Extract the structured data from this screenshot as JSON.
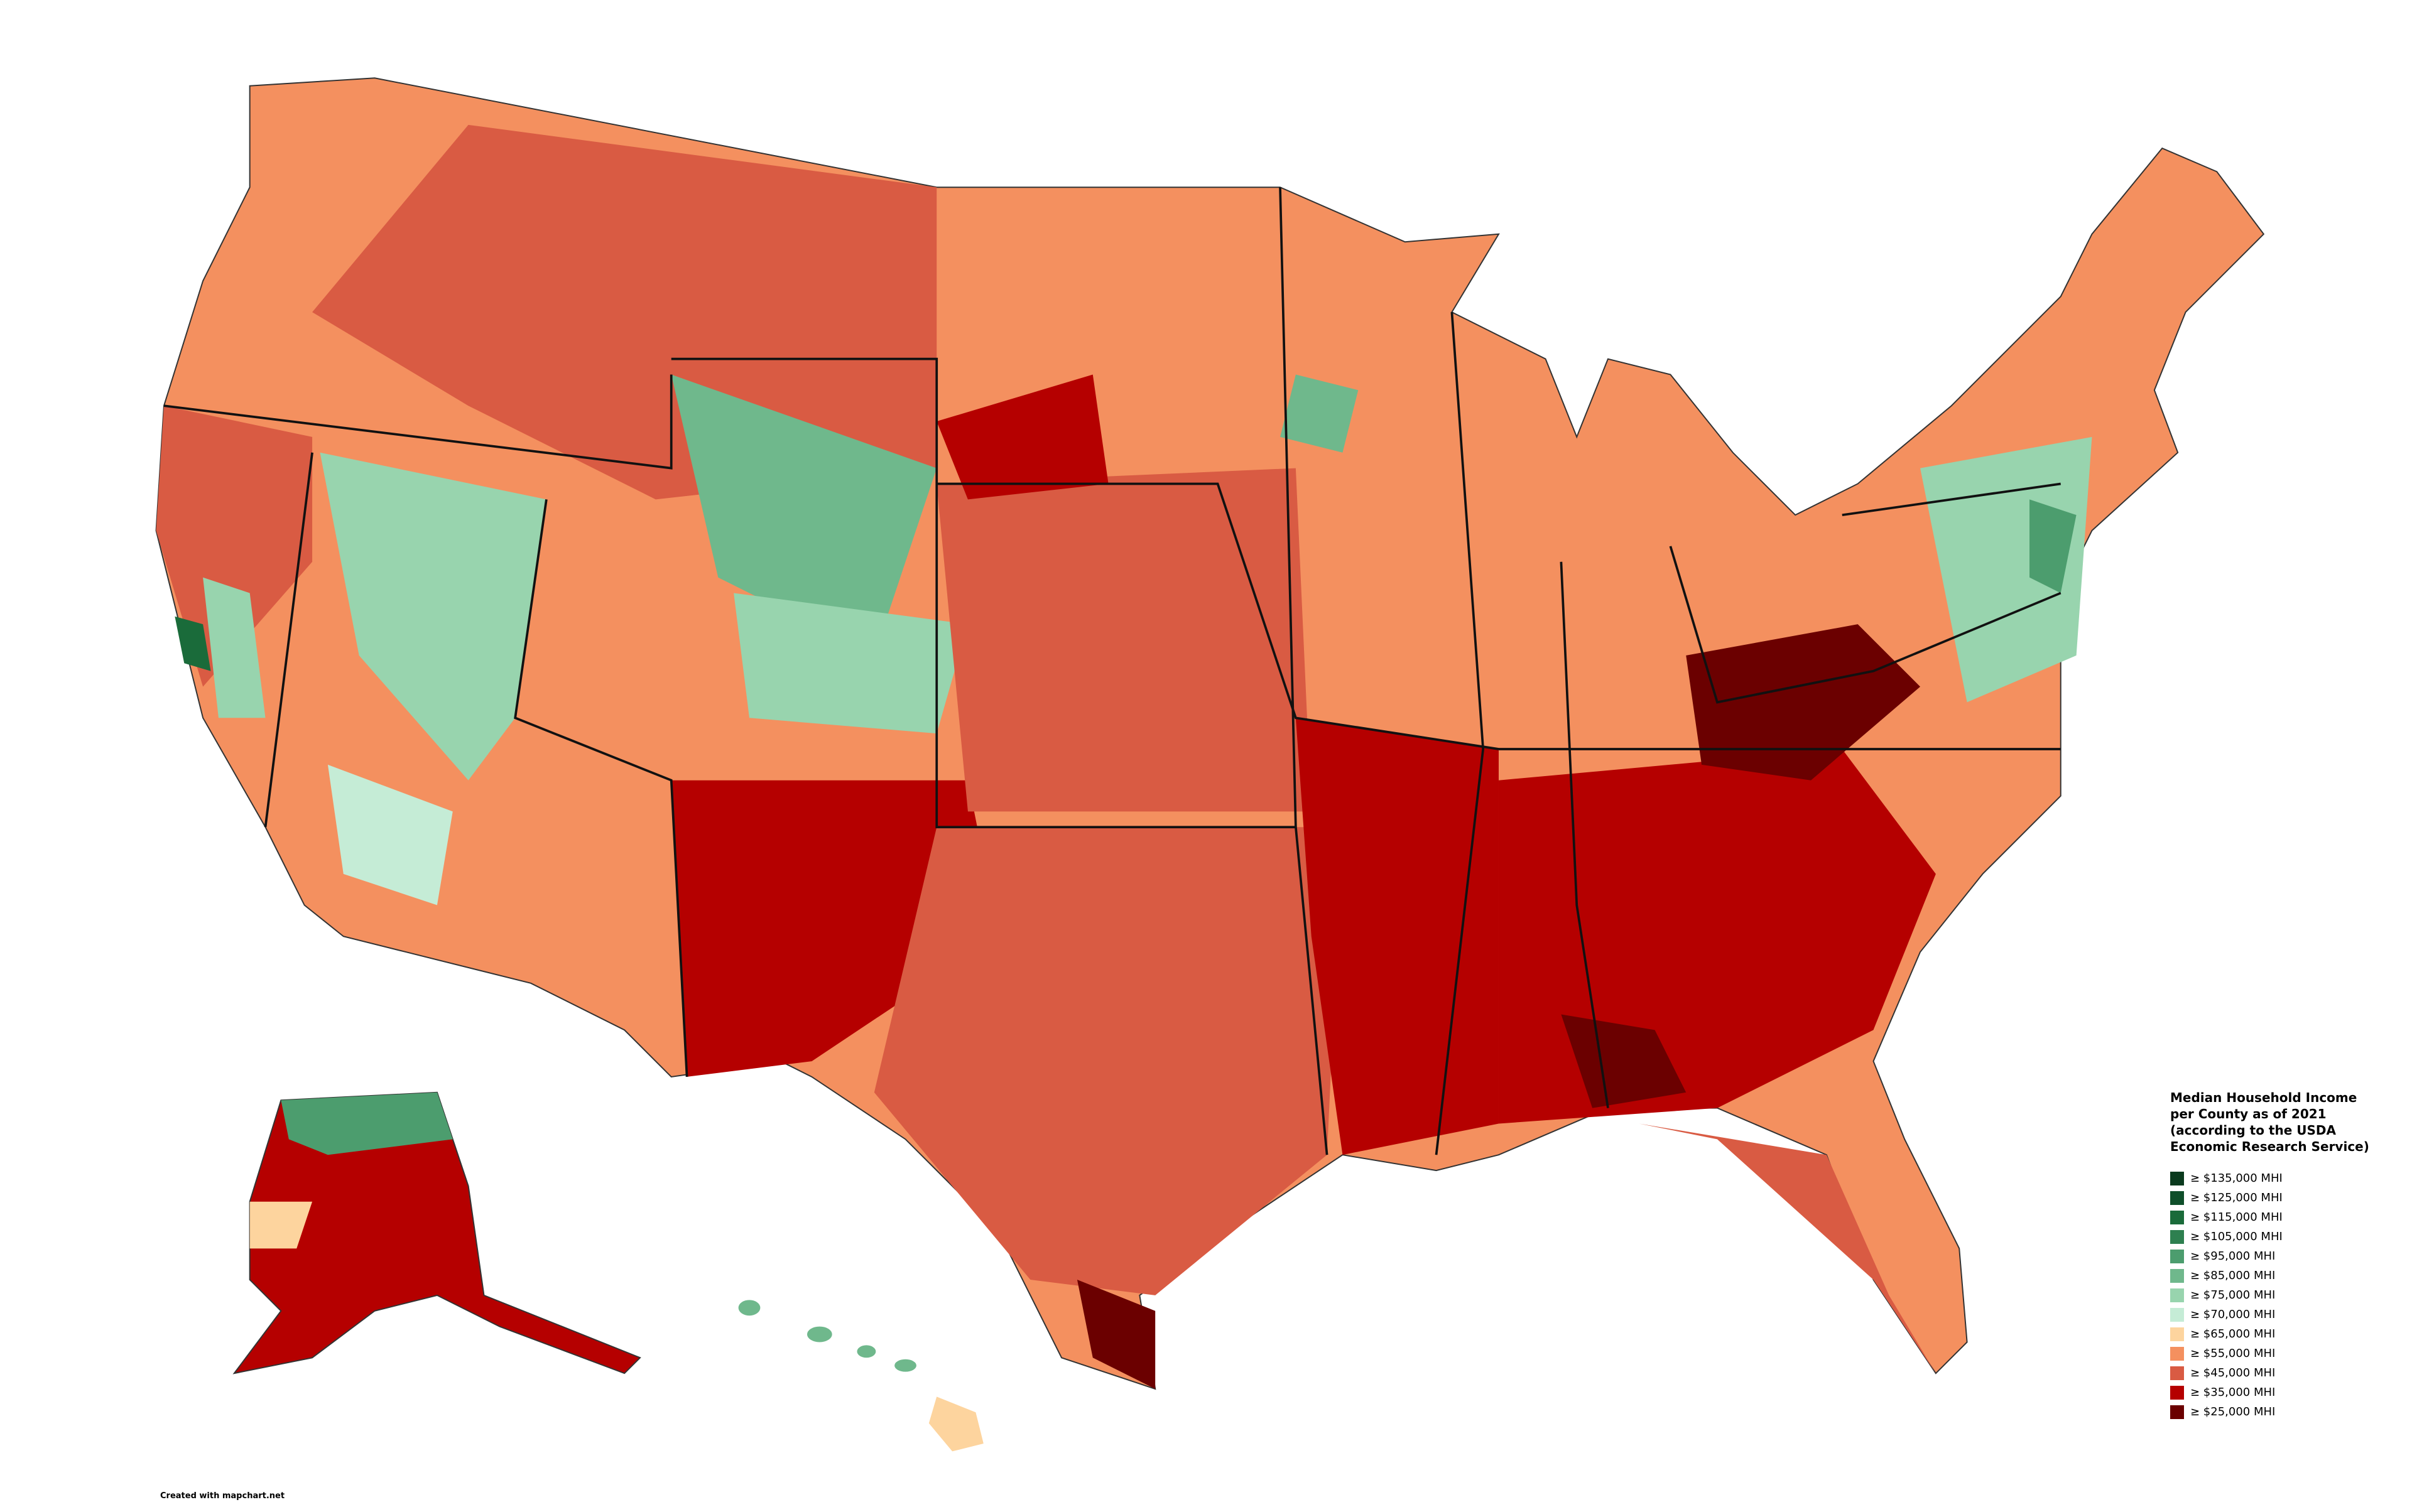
{
  "legend": {
    "title": "Median Household Income per County as of 2021 (according to the USDA Economic Research Service)",
    "items": [
      {
        "label": "≥ $135,000 MHI",
        "color": "#0a3a1e"
      },
      {
        "label": "≥ $125,000 MHI",
        "color": "#0f4f2a"
      },
      {
        "label": "≥ $115,000 MHI",
        "color": "#1a6b3a"
      },
      {
        "label": "≥ $105,000 MHI",
        "color": "#2e8050"
      },
      {
        "label": "≥ $95,000 MHI",
        "color": "#4c9d6e"
      },
      {
        "label": "≥ $85,000 MHI",
        "color": "#6fb88c"
      },
      {
        "label": "≥ $75,000 MHI",
        "color": "#98d4ae"
      },
      {
        "label": "≥ $70,000 MHI",
        "color": "#c5ecd6"
      },
      {
        "label": "≥ $65,000 MHI",
        "color": "#fdd49e"
      },
      {
        "label": "≥ $55,000 MHI",
        "color": "#f4905f"
      },
      {
        "label": "≥ $45,000 MHI",
        "color": "#d95b43"
      },
      {
        "label": "≥ $35,000 MHI",
        "color": "#b50000"
      },
      {
        "label": "≥ $25,000 MHI",
        "color": "#6b0000"
      }
    ]
  },
  "credit": "Created with mapchart.net"
}
